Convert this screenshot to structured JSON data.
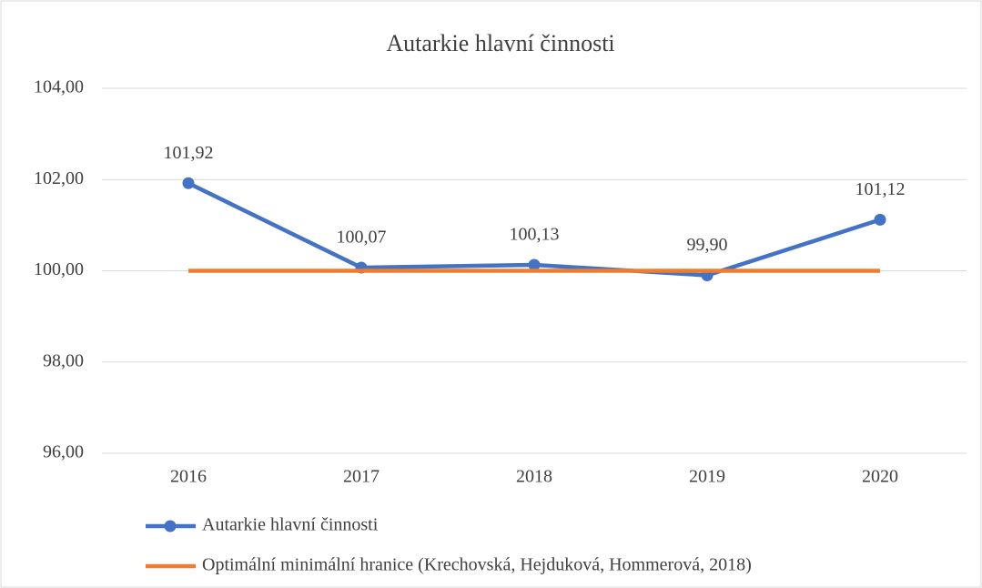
{
  "chart_data": {
    "type": "line",
    "title": "Autarkie hlavní činnosti",
    "categories": [
      "2016",
      "2017",
      "2018",
      "2019",
      "2020"
    ],
    "series": [
      {
        "name": "Autarkie hlavní činnosti",
        "color": "#4472c4",
        "values": [
          101.92,
          100.07,
          100.13,
          99.9,
          101.12
        ],
        "value_labels": [
          "101,92",
          "100,07",
          "100,13",
          "99,90",
          "101,12"
        ],
        "markers": true
      },
      {
        "name": "Optimální minimální hranice (Krechovská, Hejduková, Hommerová, 2018)",
        "color": "#ed7d31",
        "values": [
          100,
          100,
          100,
          100,
          100
        ],
        "markers": false
      }
    ],
    "ylim": [
      96,
      104
    ],
    "yticks": [
      {
        "value": 96,
        "label": "96,00"
      },
      {
        "value": 98,
        "label": "98,00"
      },
      {
        "value": 100,
        "label": "100,00"
      },
      {
        "value": 102,
        "label": "102,00"
      },
      {
        "value": 104,
        "label": "104,00"
      }
    ],
    "grid": true,
    "legend": "bottom"
  }
}
